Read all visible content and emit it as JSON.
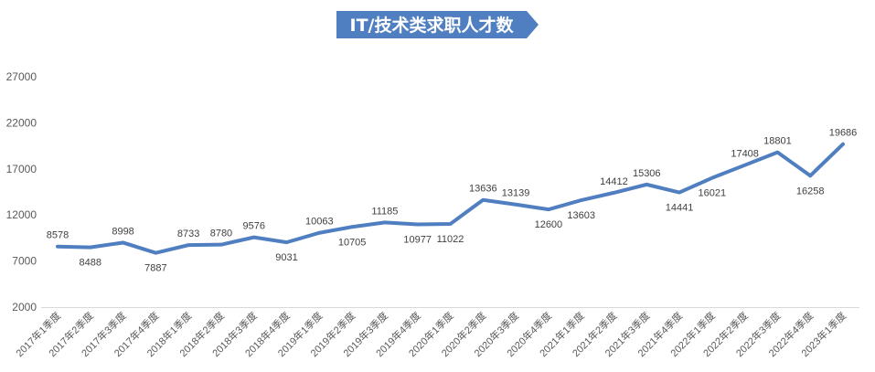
{
  "chart_data": {
    "type": "line",
    "title": "IT/技术类求职人才数",
    "xlabel": "",
    "ylabel": "",
    "ylim": [
      2000,
      27000
    ],
    "yticks": [
      2000,
      7000,
      12000,
      17000,
      22000,
      27000
    ],
    "grid": false,
    "legend": "none",
    "colors": {
      "line": "#4f7fc0",
      "title_bg": "#4f7fc0"
    },
    "categories": [
      "2017年1季度",
      "2017年2季度",
      "2017年3季度",
      "2017年4季度",
      "2018年1季度",
      "2018年2季度",
      "2018年3季度",
      "2018年4季度",
      "2019年1季度",
      "2019年2季度",
      "2019年3季度",
      "2019年4季度",
      "2020年1季度",
      "2020年2季度",
      "2020年3季度",
      "2020年4季度",
      "2021年1季度",
      "2021年2季度",
      "2021年3季度",
      "2021年4季度",
      "2022年1季度",
      "2022年2季度",
      "2022年3季度",
      "2022年4季度",
      "2023年1季度"
    ],
    "values": [
      8578,
      8488,
      8998,
      7887,
      8733,
      8780,
      9576,
      9031,
      10063,
      10705,
      11185,
      10977,
      11022,
      13636,
      13139,
      12600,
      13603,
      14412,
      15306,
      14441,
      16021,
      17408,
      18801,
      16258,
      19686
    ],
    "label_positions": [
      "above",
      "below",
      "above",
      "below",
      "above",
      "above",
      "above",
      "below",
      "above",
      "below",
      "above",
      "below",
      "below",
      "above",
      "above",
      "below",
      "below",
      "above",
      "above",
      "below",
      "below",
      "above",
      "above",
      "below",
      "above"
    ]
  }
}
